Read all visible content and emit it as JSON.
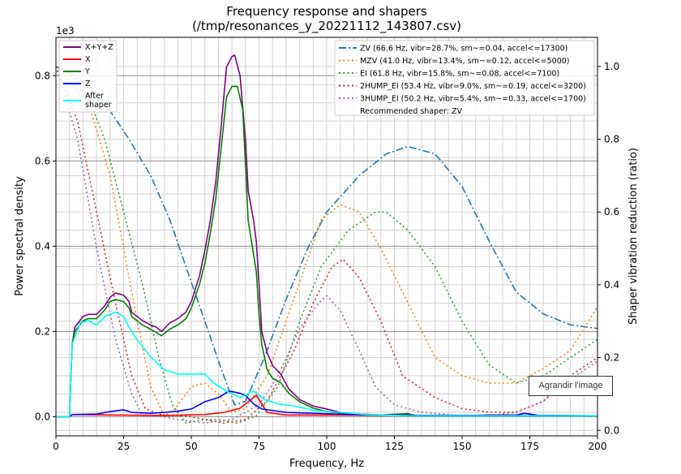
{
  "chart_data": {
    "type": "line",
    "title": "Frequency response and shapers",
    "subtitle": "(/tmp/resonances_y_20221112_143807.csv)",
    "xlabel": "Frequency, Hz",
    "ylabel": "Power spectral density",
    "y2label": "Shaper vibration reduction (ratio)",
    "y_offset_label": "1e3",
    "xlim": [
      0,
      200
    ],
    "ylim": [
      -0.045,
      0.89
    ],
    "y2lim": [
      -0.015,
      1.08
    ],
    "xticks": [
      "0",
      "25",
      "50",
      "75",
      "100",
      "125",
      "150",
      "175",
      "200"
    ],
    "yticks": [
      "0.0",
      "0.2",
      "0.4",
      "0.6",
      "0.8"
    ],
    "y2ticks": [
      "0.0",
      "0.2",
      "0.4",
      "0.6",
      "0.8",
      "1.0"
    ],
    "grid": true,
    "legend_left": {
      "placement": "top-left",
      "entries": [
        "X+Y+Z",
        "X",
        "Y",
        "Z",
        "After shaper"
      ]
    },
    "legend_right": {
      "placement": "top-right",
      "entries": [
        "ZV (66.6 Hz, vibr=28.7%, sm~=0.04, accel<=17300)",
        "MZV (41.0 Hz, vibr=13.4%, sm~=0.12, accel<=5000)",
        "EI (61.8 Hz, vibr=15.8%, sm~=0.08, accel<=7100)",
        "2HUMP_EI (53.4 Hz, vibr=9.0%, sm~=0.19, accel<=3200)",
        "3HUMP_EI (50.2 Hz, vibr=5.4%, sm~=0.33, accel<=1700)",
        "Recommended shaper: ZV"
      ]
    },
    "psd_series": [
      {
        "name": "X+Y+Z",
        "color": "#800080",
        "points": [
          [
            0,
            0
          ],
          [
            5,
            0
          ],
          [
            6,
            0.17
          ],
          [
            7,
            0.21
          ],
          [
            10,
            0.235
          ],
          [
            12,
            0.24
          ],
          [
            15,
            0.24
          ],
          [
            18,
            0.26
          ],
          [
            20,
            0.28
          ],
          [
            22,
            0.29
          ],
          [
            25,
            0.285
          ],
          [
            27,
            0.27
          ],
          [
            28,
            0.245
          ],
          [
            32,
            0.225
          ],
          [
            35,
            0.215
          ],
          [
            37,
            0.21
          ],
          [
            39,
            0.2
          ],
          [
            42,
            0.22
          ],
          [
            45,
            0.23
          ],
          [
            48,
            0.245
          ],
          [
            50,
            0.27
          ],
          [
            53,
            0.33
          ],
          [
            55,
            0.39
          ],
          [
            57,
            0.46
          ],
          [
            59,
            0.55
          ],
          [
            61,
            0.68
          ],
          [
            63,
            0.82
          ],
          [
            65,
            0.845
          ],
          [
            66,
            0.848
          ],
          [
            68,
            0.8
          ],
          [
            70,
            0.65
          ],
          [
            71,
            0.53
          ],
          [
            73,
            0.46
          ],
          [
            74,
            0.41
          ],
          [
            75,
            0.31
          ],
          [
            76,
            0.2
          ],
          [
            78,
            0.15
          ],
          [
            80,
            0.12
          ],
          [
            83,
            0.1
          ],
          [
            86,
            0.065
          ],
          [
            90,
            0.04
          ],
          [
            95,
            0.025
          ],
          [
            100,
            0.018
          ],
          [
            105,
            0.01
          ],
          [
            110,
            0.007
          ],
          [
            120,
            0.004
          ],
          [
            130,
            0.007
          ],
          [
            133,
            0.002
          ],
          [
            150,
            0.002
          ],
          [
            160,
            0.004
          ],
          [
            170,
            0.004
          ],
          [
            173,
            0.008
          ],
          [
            178,
            0.003
          ],
          [
            200,
            0.002
          ]
        ]
      },
      {
        "name": "X",
        "color": "#ff0000",
        "points": [
          [
            0,
            0
          ],
          [
            5,
            0
          ],
          [
            6,
            0.005
          ],
          [
            20,
            0.004
          ],
          [
            40,
            0.003
          ],
          [
            55,
            0.005
          ],
          [
            62,
            0.01
          ],
          [
            68,
            0.02
          ],
          [
            72,
            0.04
          ],
          [
            74,
            0.05
          ],
          [
            76,
            0.03
          ],
          [
            78,
            0.01
          ],
          [
            85,
            0.004
          ],
          [
            200,
            0.002
          ]
        ]
      },
      {
        "name": "Y",
        "color": "#008000",
        "points": [
          [
            0,
            0
          ],
          [
            5,
            0
          ],
          [
            6,
            0.17
          ],
          [
            7,
            0.2
          ],
          [
            10,
            0.225
          ],
          [
            12,
            0.23
          ],
          [
            15,
            0.23
          ],
          [
            18,
            0.25
          ],
          [
            20,
            0.27
          ],
          [
            22,
            0.275
          ],
          [
            25,
            0.27
          ],
          [
            27,
            0.255
          ],
          [
            28,
            0.235
          ],
          [
            32,
            0.215
          ],
          [
            35,
            0.205
          ],
          [
            37,
            0.198
          ],
          [
            39,
            0.19
          ],
          [
            42,
            0.205
          ],
          [
            45,
            0.215
          ],
          [
            48,
            0.23
          ],
          [
            50,
            0.255
          ],
          [
            53,
            0.31
          ],
          [
            55,
            0.36
          ],
          [
            57,
            0.43
          ],
          [
            59,
            0.51
          ],
          [
            61,
            0.63
          ],
          [
            63,
            0.75
          ],
          [
            65,
            0.775
          ],
          [
            67,
            0.775
          ],
          [
            69,
            0.72
          ],
          [
            71,
            0.46
          ],
          [
            73,
            0.38
          ],
          [
            74,
            0.34
          ],
          [
            75,
            0.24
          ],
          [
            76,
            0.17
          ],
          [
            78,
            0.11
          ],
          [
            80,
            0.09
          ],
          [
            83,
            0.08
          ],
          [
            86,
            0.055
          ],
          [
            90,
            0.035
          ],
          [
            95,
            0.02
          ],
          [
            100,
            0.012
          ],
          [
            110,
            0.005
          ],
          [
            120,
            0.003
          ],
          [
            130,
            0.006
          ],
          [
            133,
            0.002
          ],
          [
            200,
            0.002
          ]
        ]
      },
      {
        "name": "Z",
        "color": "#0000ff",
        "points": [
          [
            0,
            0
          ],
          [
            5,
            0
          ],
          [
            6,
            0.005
          ],
          [
            15,
            0.006
          ],
          [
            20,
            0.012
          ],
          [
            25,
            0.016
          ],
          [
            28,
            0.01
          ],
          [
            35,
            0.008
          ],
          [
            40,
            0.01
          ],
          [
            45,
            0.013
          ],
          [
            50,
            0.018
          ],
          [
            55,
            0.035
          ],
          [
            60,
            0.045
          ],
          [
            64,
            0.06
          ],
          [
            68,
            0.055
          ],
          [
            70,
            0.05
          ],
          [
            73,
            0.03
          ],
          [
            76,
            0.018
          ],
          [
            85,
            0.01
          ],
          [
            110,
            0.005
          ],
          [
            130,
            0.003
          ],
          [
            170,
            0.003
          ],
          [
            173,
            0.008
          ],
          [
            178,
            0.003
          ],
          [
            200,
            0.002
          ]
        ]
      },
      {
        "name": "After shaper",
        "color": "#00ffff",
        "points": [
          [
            0,
            0
          ],
          [
            5,
            0
          ],
          [
            6,
            0.17
          ],
          [
            9,
            0.22
          ],
          [
            12,
            0.225
          ],
          [
            15,
            0.215
          ],
          [
            18,
            0.235
          ],
          [
            22,
            0.245
          ],
          [
            25,
            0.235
          ],
          [
            27,
            0.21
          ],
          [
            30,
            0.18
          ],
          [
            35,
            0.14
          ],
          [
            40,
            0.11
          ],
          [
            45,
            0.1
          ],
          [
            50,
            0.1
          ],
          [
            55,
            0.1
          ],
          [
            58,
            0.08
          ],
          [
            63,
            0.06
          ],
          [
            68,
            0.045
          ],
          [
            73,
            0.06
          ],
          [
            77,
            0.04
          ],
          [
            82,
            0.03
          ],
          [
            88,
            0.025
          ],
          [
            95,
            0.015
          ],
          [
            105,
            0.01
          ],
          [
            115,
            0.005
          ],
          [
            130,
            0.002
          ],
          [
            200,
            0.002
          ]
        ]
      }
    ],
    "shaper_series": [
      {
        "name": "ZV",
        "color": "#1f77b4",
        "dash": "dashdot",
        "points": [
          [
            0,
            1.0
          ],
          [
            8,
            0.97
          ],
          [
            18,
            0.9
          ],
          [
            27,
            0.8
          ],
          [
            35,
            0.7
          ],
          [
            42,
            0.58
          ],
          [
            48,
            0.45
          ],
          [
            55,
            0.3
          ],
          [
            61,
            0.17
          ],
          [
            66,
            0.07
          ],
          [
            70,
            0.08
          ],
          [
            77,
            0.2
          ],
          [
            85,
            0.36
          ],
          [
            93,
            0.5
          ],
          [
            100,
            0.6
          ],
          [
            112,
            0.7
          ],
          [
            122,
            0.76
          ],
          [
            130,
            0.78
          ],
          [
            140,
            0.76
          ],
          [
            150,
            0.67
          ],
          [
            160,
            0.52
          ],
          [
            170,
            0.38
          ],
          [
            180,
            0.32
          ],
          [
            190,
            0.29
          ],
          [
            200,
            0.28
          ]
        ]
      },
      {
        "name": "MZV",
        "color": "#ff7f0e",
        "dash": "dotted",
        "points": [
          [
            0,
            1.0
          ],
          [
            12,
            0.9
          ],
          [
            20,
            0.7
          ],
          [
            25,
            0.5
          ],
          [
            30,
            0.3
          ],
          [
            35,
            0.12
          ],
          [
            40,
            0.04
          ],
          [
            44,
            0.06
          ],
          [
            50,
            0.12
          ],
          [
            55,
            0.13
          ],
          [
            60,
            0.1
          ],
          [
            65,
            0.05
          ],
          [
            70,
            0.06
          ],
          [
            78,
            0.15
          ],
          [
            85,
            0.3
          ],
          [
            92,
            0.45
          ],
          [
            98,
            0.58
          ],
          [
            105,
            0.62
          ],
          [
            112,
            0.6
          ],
          [
            120,
            0.5
          ],
          [
            130,
            0.35
          ],
          [
            140,
            0.2
          ],
          [
            150,
            0.15
          ],
          [
            160,
            0.13
          ],
          [
            170,
            0.13
          ],
          [
            180,
            0.17
          ],
          [
            190,
            0.22
          ],
          [
            200,
            0.34
          ]
        ]
      },
      {
        "name": "EI",
        "color": "#2ca02c",
        "dash": "dotted",
        "points": [
          [
            0,
            1.0
          ],
          [
            10,
            0.95
          ],
          [
            18,
            0.8
          ],
          [
            25,
            0.6
          ],
          [
            32,
            0.4
          ],
          [
            38,
            0.2
          ],
          [
            43,
            0.07
          ],
          [
            48,
            0.02
          ],
          [
            55,
            0.03
          ],
          [
            60,
            0.03
          ],
          [
            67,
            0.02
          ],
          [
            74,
            0.04
          ],
          [
            82,
            0.12
          ],
          [
            90,
            0.3
          ],
          [
            98,
            0.45
          ],
          [
            108,
            0.55
          ],
          [
            118,
            0.6
          ],
          [
            122,
            0.6
          ],
          [
            130,
            0.55
          ],
          [
            140,
            0.45
          ],
          [
            150,
            0.3
          ],
          [
            160,
            0.18
          ],
          [
            170,
            0.13
          ],
          [
            180,
            0.15
          ],
          [
            190,
            0.2
          ],
          [
            200,
            0.25
          ]
        ]
      },
      {
        "name": "2HUMP_EI",
        "color": "#d62728",
        "dash": "dotted",
        "points": [
          [
            0,
            1.0
          ],
          [
            8,
            0.85
          ],
          [
            15,
            0.6
          ],
          [
            22,
            0.35
          ],
          [
            28,
            0.15
          ],
          [
            33,
            0.06
          ],
          [
            40,
            0.04
          ],
          [
            48,
            0.04
          ],
          [
            55,
            0.03
          ],
          [
            62,
            0.02
          ],
          [
            70,
            0.03
          ],
          [
            78,
            0.08
          ],
          [
            88,
            0.22
          ],
          [
            95,
            0.35
          ],
          [
            102,
            0.45
          ],
          [
            106,
            0.47
          ],
          [
            112,
            0.42
          ],
          [
            120,
            0.3
          ],
          [
            128,
            0.15
          ],
          [
            140,
            0.09
          ],
          [
            150,
            0.06
          ],
          [
            160,
            0.05
          ],
          [
            170,
            0.05
          ],
          [
            180,
            0.08
          ],
          [
            190,
            0.15
          ],
          [
            200,
            0.2
          ]
        ]
      },
      {
        "name": "3HUMP_EI",
        "color": "#9467bd",
        "dash": "dotted",
        "points": [
          [
            0,
            1.0
          ],
          [
            8,
            0.8
          ],
          [
            15,
            0.5
          ],
          [
            22,
            0.25
          ],
          [
            28,
            0.1
          ],
          [
            32,
            0.04
          ],
          [
            38,
            0.04
          ],
          [
            45,
            0.03
          ],
          [
            55,
            0.02
          ],
          [
            65,
            0.03
          ],
          [
            75,
            0.07
          ],
          [
            82,
            0.15
          ],
          [
            90,
            0.28
          ],
          [
            97,
            0.35
          ],
          [
            100,
            0.37
          ],
          [
            105,
            0.33
          ],
          [
            112,
            0.22
          ],
          [
            118,
            0.12
          ],
          [
            125,
            0.07
          ],
          [
            135,
            0.05
          ],
          [
            150,
            0.04
          ],
          [
            160,
            0.04
          ],
          [
            170,
            0.05
          ],
          [
            180,
            0.08
          ],
          [
            190,
            0.14
          ],
          [
            200,
            0.19
          ]
        ]
      }
    ]
  },
  "tooltip": "Agrandir l'image"
}
